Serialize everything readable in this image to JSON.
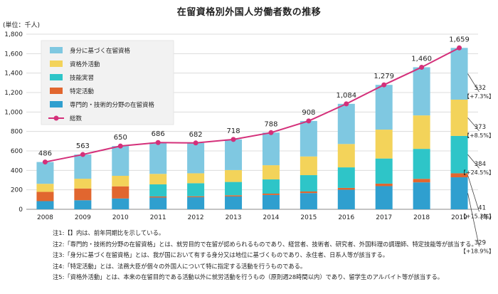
{
  "chart_data": {
    "type": "bar",
    "title": "在留資格別外国人労働者数の推移",
    "unit_label": "(単位：千人)",
    "xlabel": "(年)",
    "ylim": [
      0,
      1800
    ],
    "yticks": [
      "0",
      "200",
      "400",
      "600",
      "800",
      "1,000",
      "1,200",
      "1,400",
      "1,600",
      "1,800"
    ],
    "categories": [
      "2008",
      "2009",
      "2010",
      "2011",
      "2012",
      "2013",
      "2014",
      "2015",
      "2016",
      "2017",
      "2018",
      "2019"
    ],
    "series": [
      {
        "name": "専門的・技術的分野の在留資格",
        "color": "#2f9fcf",
        "values": [
          84,
          93,
          111,
          121,
          124,
          132,
          147,
          167,
          201,
          238,
          277,
          329
        ]
      },
      {
        "name": "特定活動",
        "color": "#e1662f",
        "values": [
          95,
          121,
          125,
          11,
          10,
          12,
          14,
          16,
          19,
          26,
          36,
          41
        ]
      },
      {
        "name": "技能実習",
        "color": "#2ec5c8",
        "values": [
          0,
          0,
          0,
          124,
          134,
          137,
          146,
          168,
          211,
          258,
          308,
          384
        ]
      },
      {
        "name": "資格外活動",
        "color": "#f3d35a",
        "values": [
          83,
          100,
          108,
          108,
          102,
          122,
          146,
          192,
          240,
          297,
          344,
          373
        ]
      },
      {
        "name": "身分に基づく在留資格",
        "color": "#7fc8e1",
        "values": [
          224,
          249,
          306,
          322,
          312,
          315,
          335,
          365,
          413,
          460,
          495,
          532
        ]
      }
    ],
    "line": {
      "name": "総数",
      "color": "#d4307a",
      "values": [
        486,
        563,
        650,
        686,
        682,
        718,
        788,
        908,
        1084,
        1279,
        1460,
        1659
      ],
      "labels": [
        "486",
        "563",
        "650",
        "686",
        "682",
        "718",
        "788",
        "908",
        "1,084",
        "1,279",
        "1,460",
        "1,659"
      ]
    },
    "annotations_2019": [
      {
        "value": "532",
        "change": "【+7.3%】"
      },
      {
        "value": "373",
        "change": "【+8.5%】"
      },
      {
        "value": "384",
        "change": "【+24.5%】"
      },
      {
        "value": "41",
        "change": "【+15.3%】"
      },
      {
        "value": "329",
        "change": "【+18.9%】"
      }
    ],
    "legend_order": [
      "身分に基づく在留資格",
      "資格外活動",
      "技能実習",
      "特定活動",
      "専門的・技術的分野の在留資格",
      "総数"
    ],
    "legend_position": "top-left"
  },
  "notes": [
    "注1:【】内は、前年同期比を示している。",
    "注2:「専門的・技術的分野の在留資格」とは、就労目的で在留が認められるものであり、経営者、技術者、研究者、外国料理の調理師、特定技能等が該当する。",
    "注3:「身分に基づく在留資格」とは、我が国において有する身分又は地位に基づくものであり、永住者、日系人等が該当する。",
    "注4:「特定活動」とは、法務大臣が個々の外国人について特に指定する活動を行うものである。",
    "注5:「資格外活動」とは、本来の在留目的である活動以外に就労活動を行うもの（原則週28時間以内）であり、留学生のアルバイト等が該当する。"
  ]
}
